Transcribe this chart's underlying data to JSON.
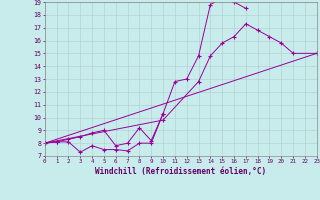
{
  "bg_color": "#c8ecec",
  "line_color": "#990099",
  "xlabel": "Windchill (Refroidissement éolien,°C)",
  "xlim": [
    0,
    23
  ],
  "ylim": [
    7,
    19
  ],
  "xticks": [
    0,
    1,
    2,
    3,
    4,
    5,
    6,
    7,
    8,
    9,
    10,
    11,
    12,
    13,
    14,
    15,
    16,
    17,
    18,
    19,
    20,
    21,
    22,
    23
  ],
  "yticks": [
    7,
    8,
    9,
    10,
    11,
    12,
    13,
    14,
    15,
    16,
    17,
    18,
    19
  ],
  "line1_x": [
    0,
    1,
    2,
    3,
    4,
    5,
    6,
    7,
    8,
    9,
    10,
    11,
    12,
    13,
    14,
    15,
    16,
    17
  ],
  "line1_y": [
    8.0,
    8.1,
    8.1,
    7.3,
    7.8,
    7.5,
    7.5,
    7.4,
    8.0,
    8.0,
    10.3,
    12.8,
    13.0,
    14.8,
    18.8,
    19.3,
    19.0,
    18.5
  ],
  "line2_x": [
    0,
    1,
    2,
    3,
    4,
    5,
    6,
    7,
    8,
    9,
    10
  ],
  "line2_y": [
    8.0,
    8.1,
    8.3,
    8.5,
    8.8,
    9.0,
    7.8,
    8.0,
    9.2,
    8.2,
    10.3
  ],
  "line3_x": [
    0,
    10,
    13,
    14,
    15,
    16,
    17,
    18,
    19,
    20,
    21,
    23
  ],
  "line3_y": [
    8.0,
    9.8,
    12.8,
    14.8,
    15.8,
    16.3,
    17.3,
    16.8,
    16.3,
    15.8,
    15.0,
    15.0
  ],
  "line4_x": [
    0,
    23
  ],
  "line4_y": [
    8.0,
    15.0
  ]
}
